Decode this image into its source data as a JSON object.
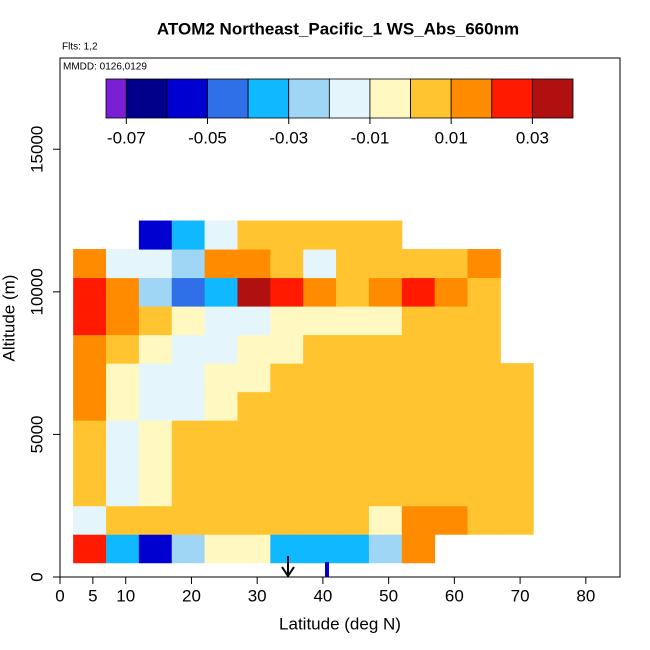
{
  "chart_data": {
    "type": "heatmap",
    "title": "ATOM2 Northeast_Pacific_1 WS_Abs_660nm",
    "subtitle": "Flts: 1,2",
    "annotation": "MMDD: 0126,0129",
    "x_label": "Latitude (deg N)",
    "y_label": "Altitude (m)",
    "xlim": [
      0,
      85.2
    ],
    "xticks": [
      0,
      5,
      10,
      20,
      30,
      40,
      50,
      60,
      70,
      80
    ],
    "ylim": [
      0,
      18200
    ],
    "yticks": [
      0,
      5000,
      10000,
      15000
    ],
    "x_bins": [
      2,
      7,
      12,
      17,
      22,
      27,
      32,
      37,
      42,
      47,
      52,
      57,
      62,
      67,
      72
    ],
    "y_bins": [
      500,
      1500,
      2500,
      3500,
      4500,
      5500,
      6500,
      7500,
      8500,
      9500,
      10500,
      11500,
      12500
    ],
    "z": [
      [
        0.02,
        -0.04,
        -0.055,
        -0.03,
        -0.01,
        -0.005,
        -0.035,
        -0.04,
        -0.04,
        -0.03,
        0.015,
        null,
        null,
        null
      ],
      [
        -0.015,
        0.005,
        0.008,
        0.006,
        0.005,
        0.005,
        0.006,
        0.005,
        0.004,
        -0.01,
        0.012,
        0.012,
        0.008,
        0.006
      ],
      [
        0.006,
        -0.012,
        -0.005,
        0.008,
        0.009,
        0.007,
        0.007,
        0.006,
        0.006,
        0.007,
        0.006,
        0.006,
        0.006,
        0.006
      ],
      [
        0.007,
        -0.015,
        -0.008,
        0.004,
        0.006,
        0.006,
        0.006,
        0.006,
        0.006,
        0.006,
        0.006,
        0.006,
        0.006,
        0.006
      ],
      [
        0.008,
        -0.012,
        -0.01,
        0.0,
        0.004,
        0.004,
        0.005,
        0.006,
        0.006,
        0.006,
        0.006,
        0.006,
        0.006,
        0.005
      ],
      [
        0.01,
        -0.008,
        -0.015,
        -0.012,
        -0.005,
        0.002,
        0.004,
        0.005,
        0.006,
        0.006,
        0.006,
        0.006,
        0.006,
        0.005
      ],
      [
        0.015,
        -0.002,
        -0.015,
        -0.018,
        -0.01,
        -0.005,
        0.002,
        0.004,
        0.006,
        0.006,
        0.006,
        0.006,
        0.006,
        0.005
      ],
      [
        0.018,
        0.005,
        -0.01,
        -0.015,
        -0.015,
        -0.01,
        -0.005,
        0.0,
        0.004,
        0.005,
        0.005,
        0.005,
        0.006,
        null
      ],
      [
        0.02,
        0.01,
        0.0,
        -0.01,
        -0.02,
        -0.015,
        -0.005,
        -0.008,
        -0.01,
        -0.005,
        0.006,
        0.006,
        0.006,
        null
      ],
      [
        0.022,
        0.012,
        -0.03,
        -0.05,
        -0.04,
        0.03,
        0.025,
        0.01,
        0.006,
        0.01,
        0.02,
        0.012,
        0.008,
        null
      ],
      [
        0.01,
        -0.015,
        -0.02,
        -0.025,
        0.012,
        0.01,
        0.008,
        -0.015,
        0.005,
        0.006,
        0.008,
        0.008,
        0.015,
        null
      ],
      [
        null,
        null,
        -0.06,
        -0.04,
        -0.02,
        0.006,
        0.006,
        0.008,
        0.006,
        0.007,
        null,
        null,
        null,
        null
      ]
    ],
    "color_breaks": [
      -0.075,
      -0.07,
      -0.06,
      -0.05,
      -0.04,
      -0.03,
      -0.02,
      -0.01,
      0,
      0.01,
      0.02,
      0.03,
      0.04
    ],
    "colors": [
      "#7b1fd6",
      "#00008b",
      "#0000d0",
      "#2f6fe8",
      "#10b8ff",
      "#9fd5f5",
      "#e4f5fc",
      "#fff8c0",
      "#ffc430",
      "#ff8c00",
      "#ff1a00",
      "#b01010"
    ],
    "colorbar_ticks": [
      -0.07,
      -0.05,
      -0.03,
      -0.01,
      0.01,
      0.03
    ]
  }
}
